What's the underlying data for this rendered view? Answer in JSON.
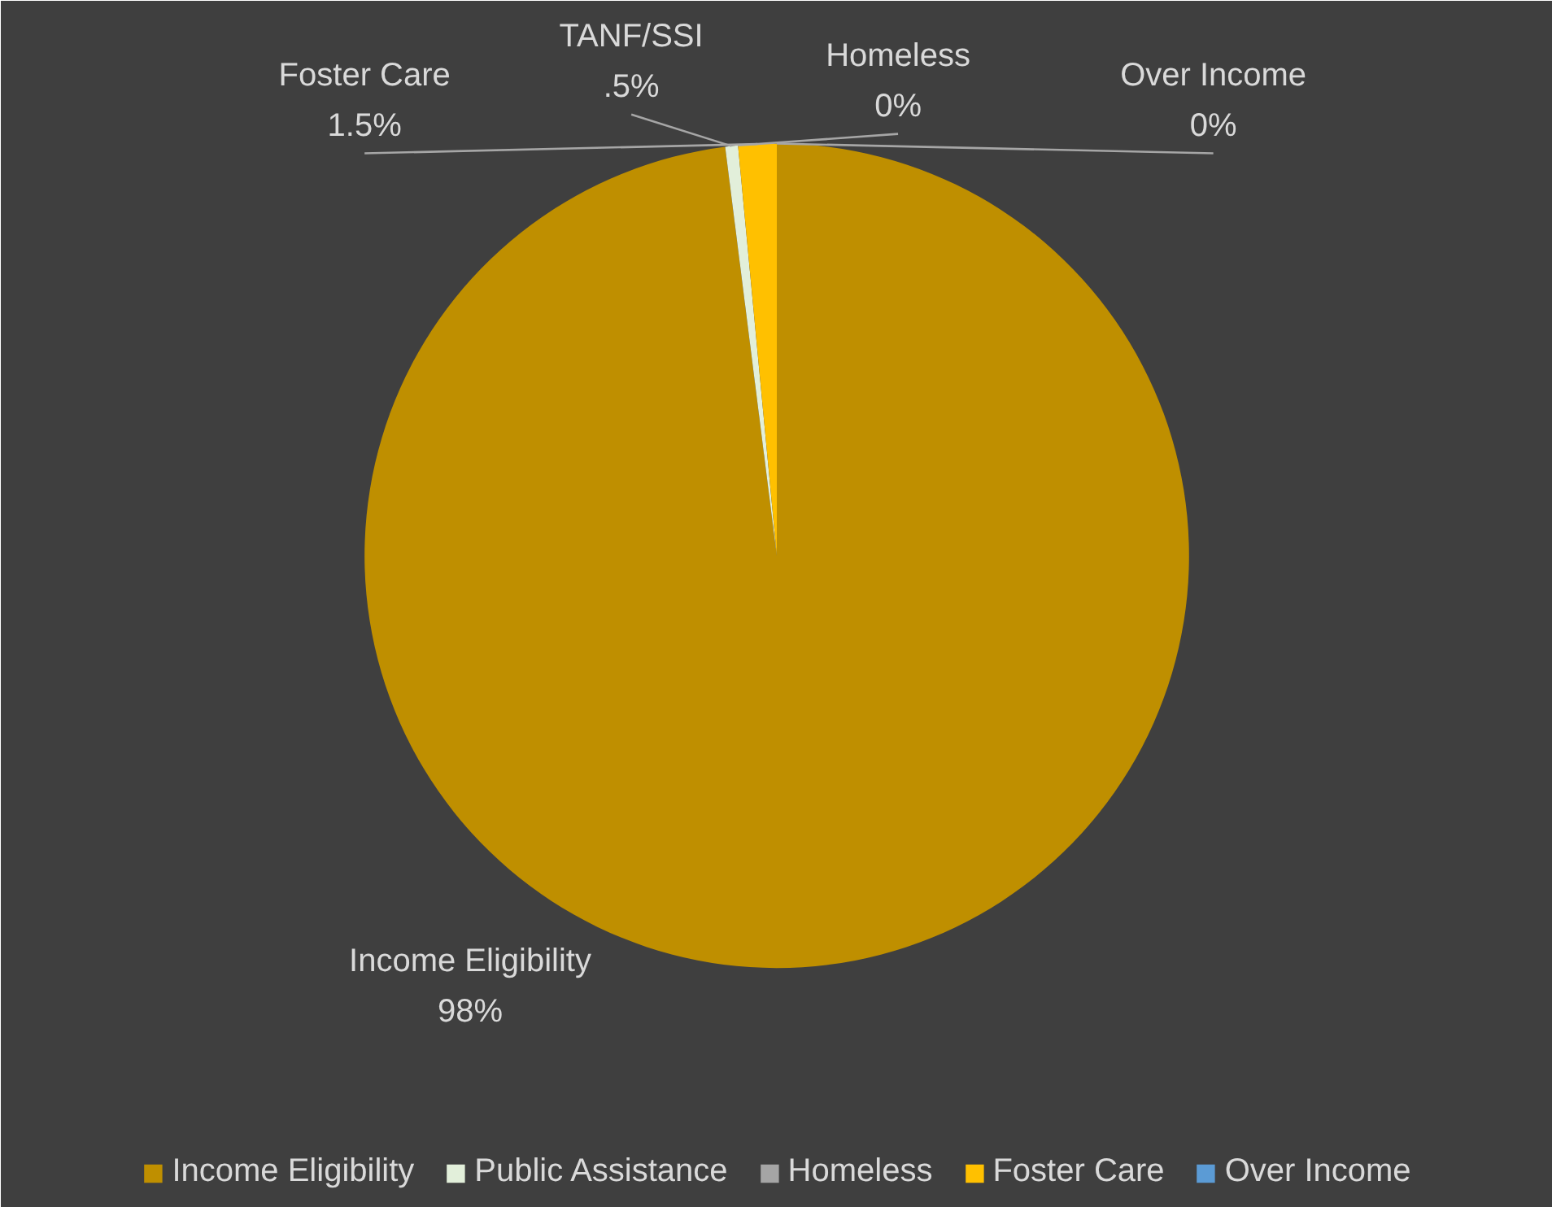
{
  "chart_data": {
    "type": "pie",
    "categories": [
      "Income Eligibility",
      "Public Assistance",
      "Homeless",
      "Foster Care",
      "Over Income"
    ],
    "values": [
      98,
      0.5,
      0,
      1.5,
      0
    ],
    "colors": [
      "#bf8f00",
      "#e2efda",
      "#a5a5a5",
      "#ffc000",
      "#5b9bd5"
    ],
    "value_labels": [
      "Income Eligibility\n98%",
      "TANF/SSI\n.5%",
      "Homeless\n0%",
      "Foster Care\n1.5%",
      "Over Income\n0%"
    ],
    "legend": "bottom"
  }
}
